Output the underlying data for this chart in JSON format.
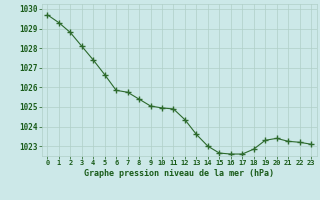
{
  "x": [
    0,
    1,
    2,
    3,
    4,
    5,
    6,
    7,
    8,
    9,
    10,
    11,
    12,
    13,
    14,
    15,
    16,
    17,
    18,
    19,
    20,
    21,
    22,
    23
  ],
  "y": [
    1029.7,
    1029.3,
    1028.8,
    1028.1,
    1027.4,
    1026.65,
    1025.85,
    1025.75,
    1025.4,
    1025.05,
    1024.95,
    1024.9,
    1024.35,
    1023.6,
    1023.0,
    1022.65,
    1022.6,
    1022.6,
    1022.85,
    1023.3,
    1023.4,
    1023.25,
    1023.2,
    1023.1
  ],
  "ylim": [
    1022.5,
    1030.25
  ],
  "yticks": [
    1023,
    1024,
    1025,
    1026,
    1027,
    1028,
    1029,
    1030
  ],
  "xlabel": "Graphe pression niveau de la mer (hPa)",
  "line_color": "#2d6a2d",
  "marker_color": "#2d6a2d",
  "bg_color": "#cce8e8",
  "grid_color": "#b0cfc8",
  "tick_label_color": "#1a5c1a",
  "axis_label_color": "#1a5c1a"
}
